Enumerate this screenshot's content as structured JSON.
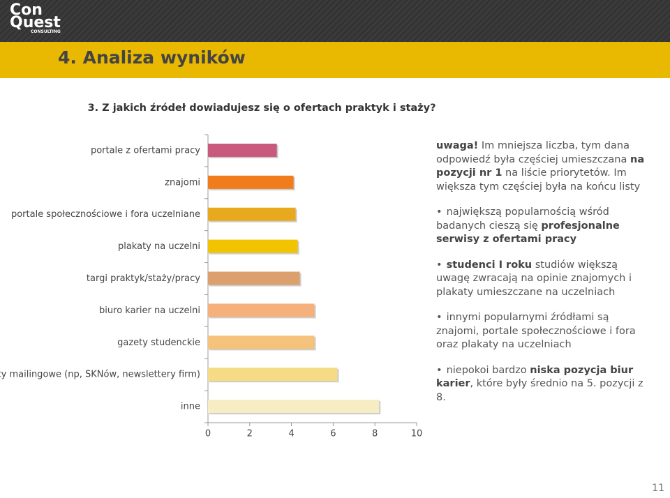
{
  "logo": {
    "line1": "Con",
    "line2": "Quest",
    "line3": "CONSULTING"
  },
  "header": {
    "title": "4. Analiza wyników"
  },
  "chart_data": {
    "type": "bar",
    "orientation": "horizontal",
    "title": "3. Z jakich źródeł dowiadujesz się o ofertach praktyk i staży?",
    "categories": [
      "portale z ofertami pracy",
      "znajomi",
      "portale społecznościowe i fora uczelniane",
      "plakaty na uczelni",
      "targi praktyk/staży/pracy",
      "biuro karier na uczelni",
      "gazety studenckie",
      "listy mailingowe (np, SKNów, newslettery firm)",
      "inne"
    ],
    "values": [
      3.3,
      4.1,
      4.2,
      4.3,
      4.4,
      5.1,
      5.1,
      6.2,
      8.2
    ],
    "colors": [
      "#c95a7d",
      "#f07c1b",
      "#e8a91e",
      "#f2c300",
      "#dba06e",
      "#f5b07c",
      "#f5c27c",
      "#f5dc84",
      "#f7edc4"
    ],
    "xlim": [
      0,
      10
    ],
    "xticks": [
      0,
      2,
      4,
      6,
      8,
      10
    ]
  },
  "notes": [
    [
      {
        "text": "uwaga!",
        "bold": true
      },
      {
        "text": " Im mniejsza liczba, tym dana odpowiedź była częściej umieszczana ",
        "bold": false
      },
      {
        "text": "na pozycji nr 1",
        "bold": true
      },
      {
        "text": " na liście priorytetów. Im większa tym częściej była na końcu listy",
        "bold": false
      }
    ],
    [
      {
        "text": "największą popularnością wśród badanych cieszą się ",
        "bold": false
      },
      {
        "text": "profesjonalne serwisy z ofertami pracy",
        "bold": true
      }
    ],
    [
      {
        "text": "studenci I roku",
        "bold": true
      },
      {
        "text": " studiów większą uwagę zwracają na opinie znajomych i plakaty umieszczane na uczelniach",
        "bold": false
      }
    ],
    [
      {
        "text": "innymi popularnymi źródłami są znajomi, portale społecznościowe i fora oraz plakaty na uczelniach",
        "bold": false
      }
    ],
    [
      {
        "text": "niepokoi bardzo ",
        "bold": false
      },
      {
        "text": "niska pozycja biur karier",
        "bold": true
      },
      {
        "text": ", które były średnio na 5. pozycji z 8.",
        "bold": false
      }
    ]
  ],
  "page_number": "11"
}
